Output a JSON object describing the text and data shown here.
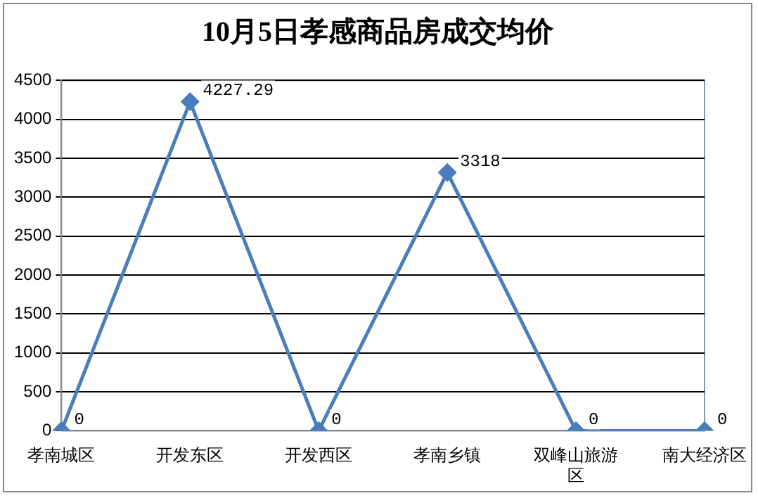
{
  "chart_data": {
    "type": "line",
    "title": "10月5日孝感商品房成交均价",
    "categories": [
      "孝南城区",
      "开发东区",
      "开发西区",
      "孝南乡镇",
      "双峰山旅游区",
      "南大经济区"
    ],
    "series": [
      {
        "color": "#4a7ebb",
        "values": [
          0,
          4227.29,
          0,
          3318,
          0,
          0
        ]
      }
    ],
    "ylim": [
      0,
      4500
    ],
    "yticks": [
      0,
      500,
      1000,
      1500,
      2000,
      2500,
      3000,
      3500,
      4000,
      4500
    ],
    "grid": "y",
    "legend": false,
    "marker": "diamond",
    "line_style": "solid",
    "data_labels": true
  }
}
